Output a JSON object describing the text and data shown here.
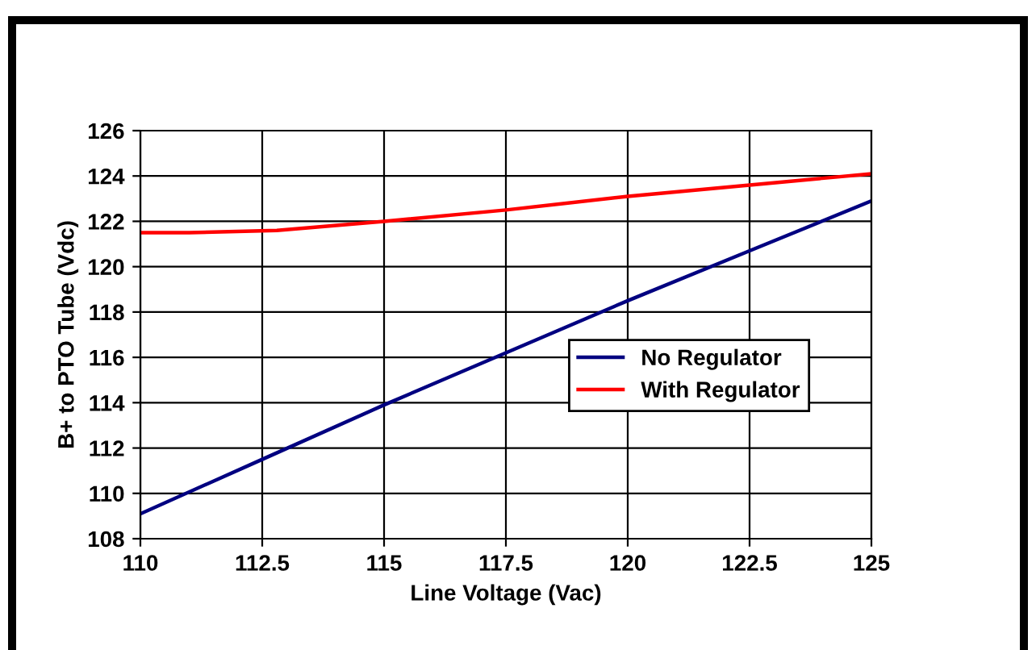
{
  "chart_data": {
    "type": "line",
    "xlabel": "Line Voltage (Vac)",
    "ylabel": "B+ to PTO Tube (Vdc)",
    "series": [
      {
        "name": "No Regulator",
        "color": "#000080",
        "x": [
          110,
          112.5,
          115,
          117.5,
          120,
          122.5,
          125
        ],
        "values": [
          109.1,
          111.5,
          113.9,
          116.2,
          118.5,
          120.7,
          122.9
        ]
      },
      {
        "name": "With Regulator",
        "color": "#ff0000",
        "x": [
          110,
          111,
          112.8,
          115,
          117.5,
          120,
          122.5,
          125
        ],
        "values": [
          121.5,
          121.5,
          121.6,
          122.0,
          122.5,
          123.1,
          123.6,
          124.1
        ]
      }
    ],
    "xlim": [
      110,
      125
    ],
    "xticks": [
      110,
      112.5,
      115,
      117.5,
      120,
      122.5,
      125
    ],
    "ylim": [
      108,
      126
    ],
    "yticks": [
      108,
      110,
      112,
      114,
      116,
      118,
      120,
      122,
      124,
      126
    ],
    "grid": true,
    "legend": "right",
    "marker": "none",
    "line_style": "solid"
  }
}
